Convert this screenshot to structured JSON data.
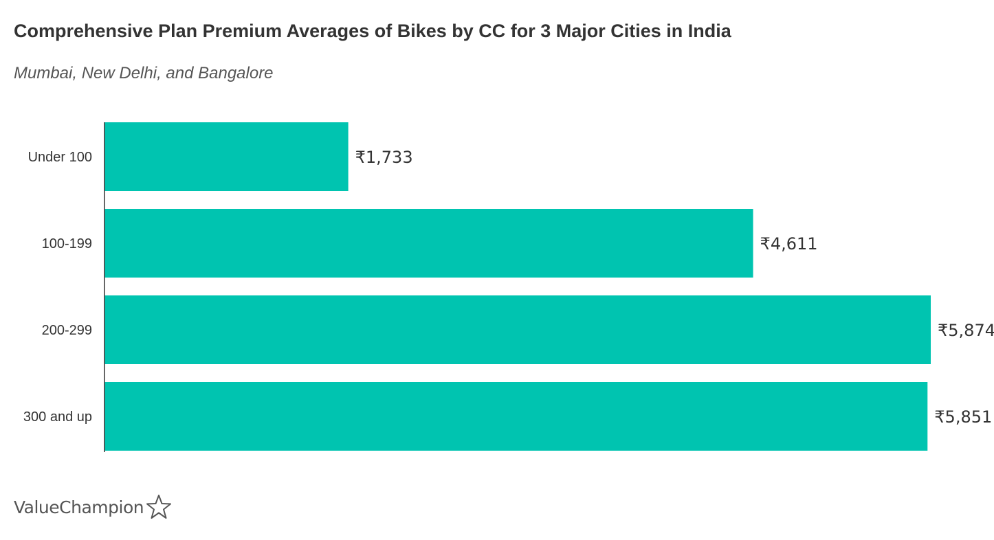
{
  "chart_data": {
    "type": "bar",
    "orientation": "horizontal",
    "title": "Comprehensive Plan Premium Averages of Bikes by CC for 3 Major Cities in India",
    "subtitle": "Mumbai, New Delhi, and Bangalore",
    "categories": [
      "Under 100",
      "100-199",
      "200-299",
      "300 and up"
    ],
    "values": [
      1733,
      4611,
      5874,
      5851
    ],
    "value_labels": [
      "₹1,733",
      "₹4,611",
      "₹5,874",
      "₹5,851"
    ],
    "xlim": [
      0,
      5874
    ],
    "grid": false,
    "legend": "none",
    "bar_color": "#00c4b0",
    "axis_color": "#333333"
  },
  "brand": {
    "name": "ValueChampion",
    "icon": "star-outline-icon"
  }
}
